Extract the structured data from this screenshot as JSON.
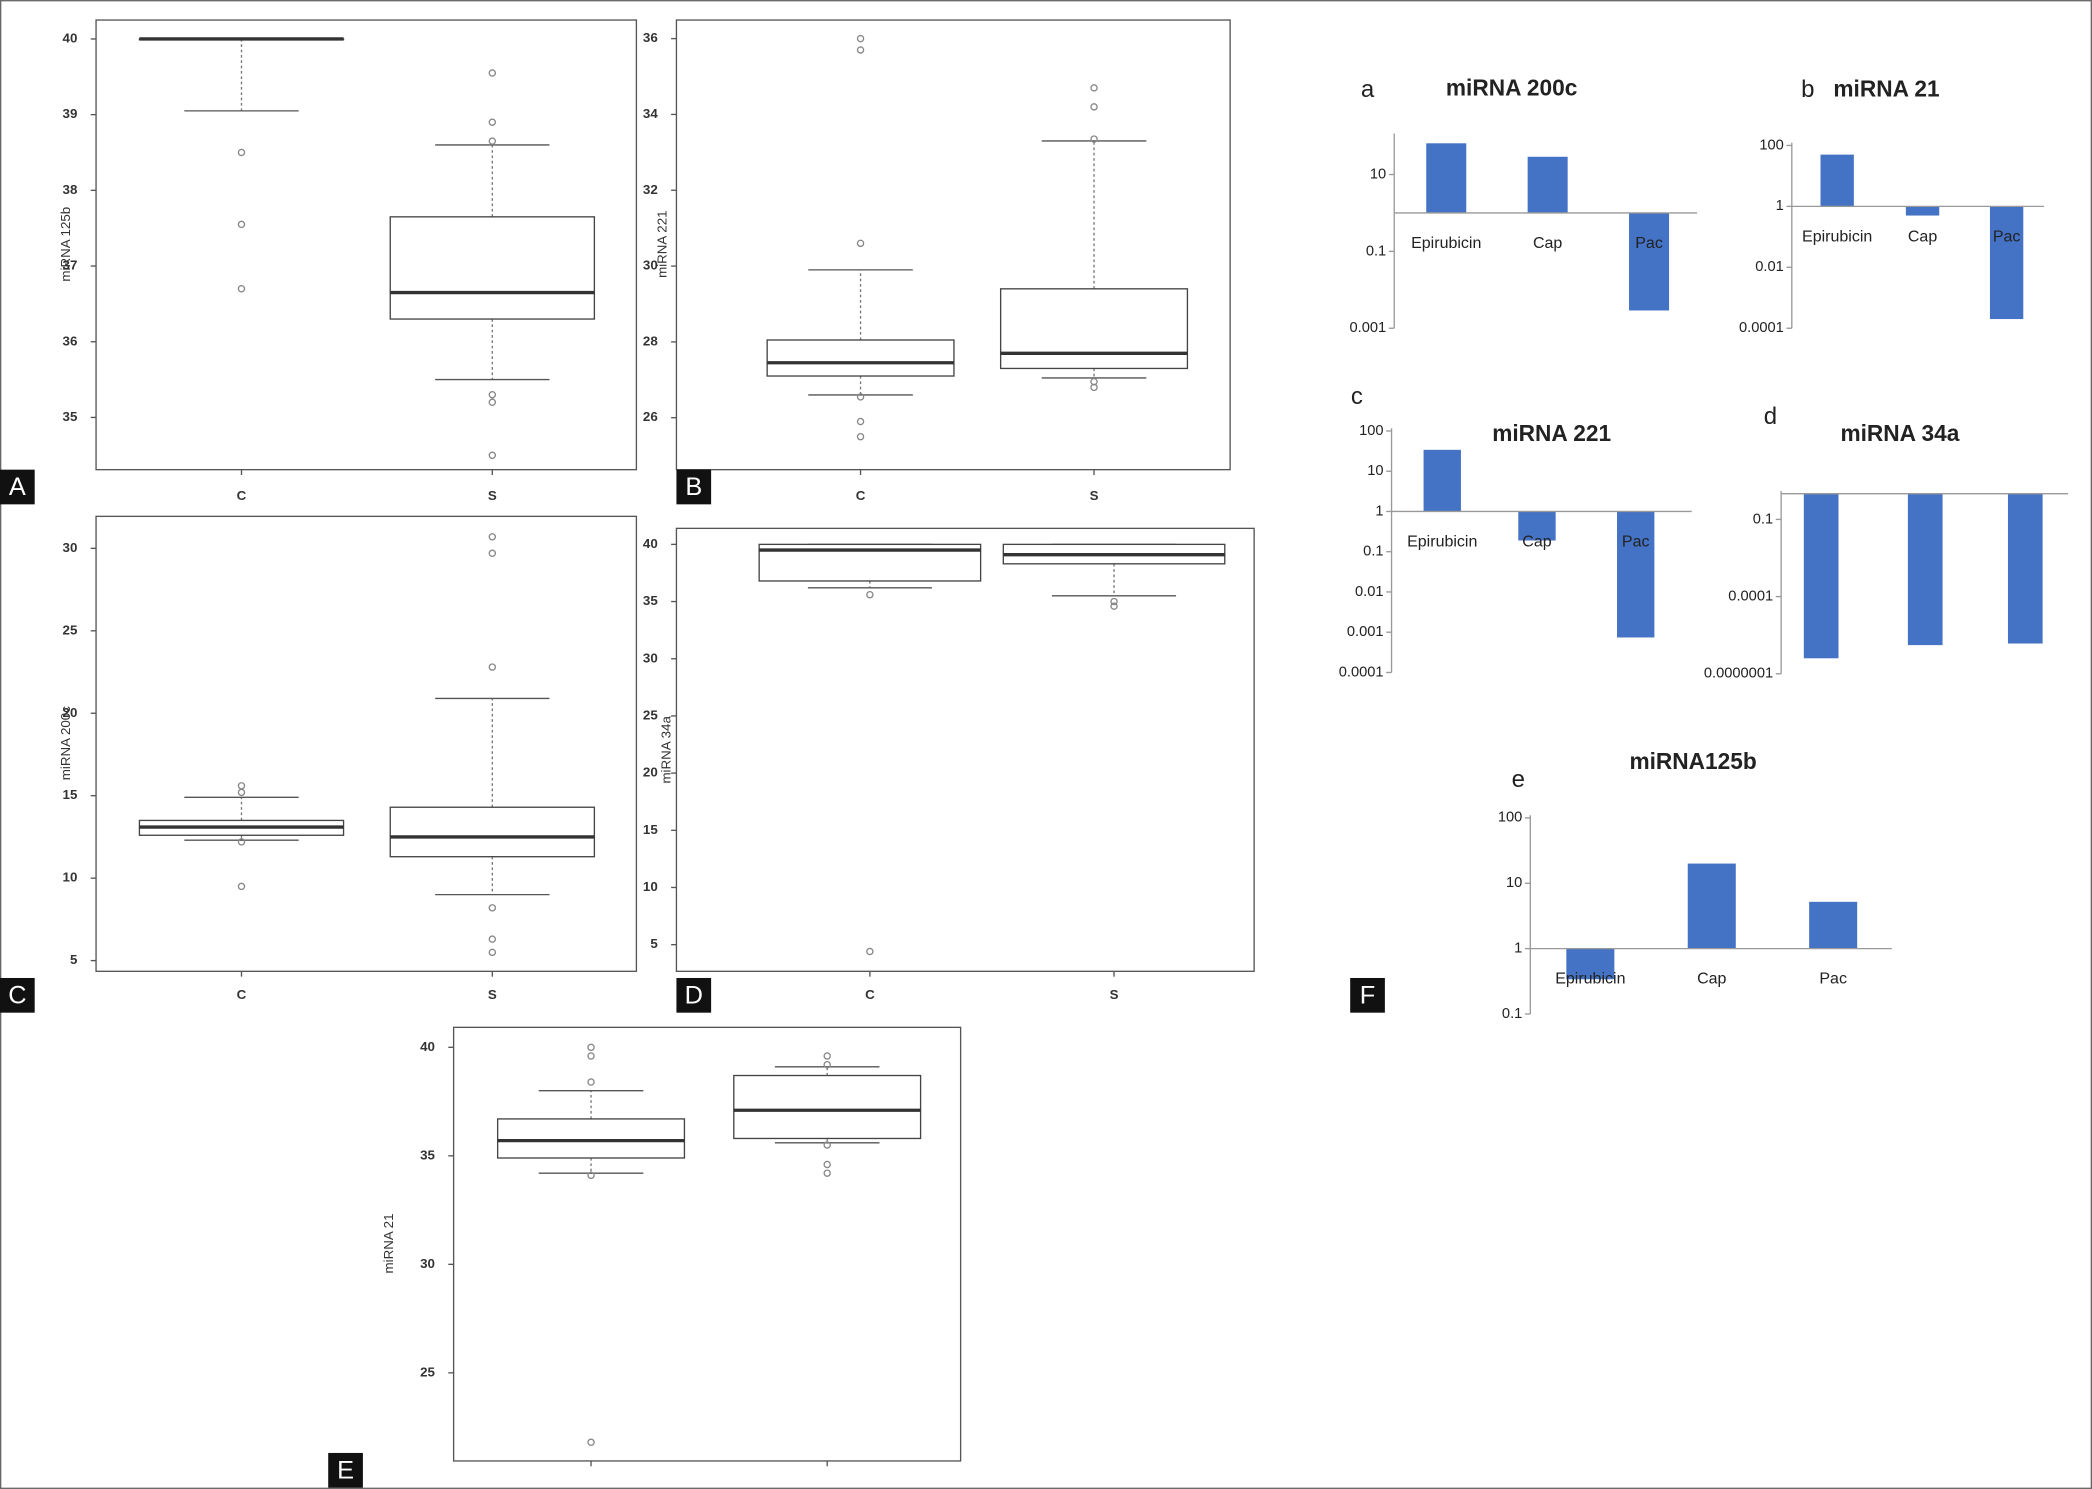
{
  "chart_data": [
    {
      "type": "box",
      "panel": "A",
      "ylabel": "miRNA 125b",
      "categories": [
        "C",
        "S"
      ],
      "boxes": [
        {
          "whislo": 39.05,
          "q1": 40,
          "med": 40,
          "q3": 40,
          "whishi": 40,
          "fliers": [
            38.5,
            37.55,
            36.7
          ]
        },
        {
          "whislo": 35.5,
          "q1": 36.3,
          "med": 36.65,
          "q3": 37.65,
          "whishi": 38.6,
          "fliers": [
            39.55,
            38.9,
            38.65,
            35.3,
            35.2,
            34.5
          ]
        }
      ],
      "ylim": [
        34.31,
        40.25
      ],
      "yticks": [
        35,
        36,
        37,
        38,
        39,
        40
      ]
    },
    {
      "type": "box",
      "panel": "B",
      "ylabel": "miRNA 221",
      "categories": [
        "C",
        "S"
      ],
      "boxes": [
        {
          "whislo": 26.6,
          "q1": 27.1,
          "med": 27.45,
          "q3": 28.05,
          "whishi": 29.9,
          "fliers": [
            30.6,
            35.7,
            36.0,
            26.55,
            25.9,
            25.5
          ]
        },
        {
          "whislo": 27.05,
          "q1": 27.3,
          "med": 27.7,
          "q3": 29.4,
          "whishi": 33.3,
          "fliers": [
            34.7,
            34.2,
            33.35,
            26.95,
            26.8
          ]
        }
      ],
      "ylim": [
        24.63,
        36.49
      ],
      "yticks": [
        26,
        28,
        30,
        32,
        34,
        36
      ]
    },
    {
      "type": "box",
      "panel": "C",
      "ylabel": "miRNA 200c",
      "categories": [
        "C",
        "S"
      ],
      "boxes": [
        {
          "whislo": 12.3,
          "q1": 12.6,
          "med": 13.1,
          "q3": 13.5,
          "whishi": 14.9,
          "fliers": [
            15.6,
            15.2,
            12.2,
            9.5
          ]
        },
        {
          "whislo": 9.0,
          "q1": 11.3,
          "med": 12.5,
          "q3": 14.3,
          "whishi": 20.9,
          "fliers": [
            30.7,
            29.7,
            22.8,
            8.2,
            6.3,
            5.5
          ]
        }
      ],
      "ylim": [
        4.35,
        31.94
      ],
      "yticks": [
        5,
        10,
        15,
        20,
        25,
        30
      ]
    },
    {
      "type": "box",
      "panel": "D",
      "ylabel": "miRNA 34a",
      "categories": [
        "C",
        "S"
      ],
      "boxes": [
        {
          "whislo": 36.2,
          "q1": 36.8,
          "med": 39.5,
          "q3": 40,
          "whishi": 40,
          "fliers": [
            35.6,
            4.4
          ]
        },
        {
          "whislo": 35.5,
          "q1": 38.3,
          "med": 39.1,
          "q3": 40,
          "whishi": 40,
          "fliers": [
            34.6,
            35.0
          ]
        }
      ],
      "ylim": [
        2.67,
        41.4
      ],
      "yticks": [
        5,
        10,
        15,
        20,
        25,
        30,
        35,
        40
      ]
    },
    {
      "type": "box",
      "panel": "E",
      "ylabel": "miRNA 21",
      "categories": [
        null,
        null
      ],
      "boxes": [
        {
          "whislo": 34.2,
          "q1": 34.9,
          "med": 35.7,
          "q3": 36.7,
          "whishi": 38.0,
          "fliers": [
            40.0,
            39.6,
            38.4,
            34.1,
            21.8
          ]
        },
        {
          "whislo": 35.6,
          "q1": 35.8,
          "med": 37.1,
          "q3": 38.7,
          "whishi": 39.1,
          "fliers": [
            39.6,
            39.2,
            35.5,
            34.6,
            34.2
          ]
        }
      ],
      "ylim": [
        20.94,
        40.92
      ],
      "yticks": [
        25,
        30,
        35,
        40
      ]
    },
    {
      "type": "bar",
      "label": "a",
      "title": "miRNA 200c",
      "categories": [
        "Epirubicin",
        "Cap",
        "Pac"
      ],
      "values": [
        65,
        29,
        0.0029
      ],
      "color": "#4472c4",
      "log": true,
      "ylim": [
        0.001,
        100
      ],
      "yticks": [
        10,
        0.1,
        0.001
      ]
    },
    {
      "type": "bar",
      "label": "b",
      "title": "miRNA 21",
      "categories": [
        "Epirubicin",
        "Cap",
        "Pac"
      ],
      "values": [
        50,
        0.5,
        0.0002
      ],
      "color": "#4472c4",
      "log": true,
      "ylim": [
        0.0001,
        100
      ],
      "yticks": [
        100,
        1,
        0.01,
        0.0001
      ]
    },
    {
      "type": "bar",
      "label": "c",
      "title": "miRNA 221",
      "categories": [
        "Epirubicin",
        "Cap",
        "Pac"
      ],
      "values": [
        34,
        0.19,
        0.00074
      ],
      "color": "#4472c4",
      "log": true,
      "ylim": [
        0.0001,
        100
      ],
      "yticks": [
        100,
        10,
        1,
        0.1,
        0.01,
        0.001,
        0.0001
      ]
    },
    {
      "type": "bar",
      "label": "d",
      "title": "miRNA 34a",
      "categories": [
        null,
        null,
        null
      ],
      "values": [
        4e-07,
        1.3e-06,
        1.5e-06
      ],
      "color": "#4472c4",
      "log": true,
      "ylim": [
        1e-07,
        1
      ],
      "yticks": [
        0.1,
        0.0001,
        {
          "value": 1e-07,
          "label": "0.0000001"
        }
      ]
    },
    {
      "type": "bar",
      "label": "e",
      "title": "miRNA125b",
      "categories": [
        "Epirubicin",
        "Cap",
        "Pac"
      ],
      "values": [
        0.34,
        20,
        5.2
      ],
      "color": "#4472c4",
      "log": true,
      "ylim": [
        0.1,
        100
      ],
      "yticks": [
        100,
        10,
        1,
        0.1
      ]
    }
  ],
  "label_F": "F"
}
